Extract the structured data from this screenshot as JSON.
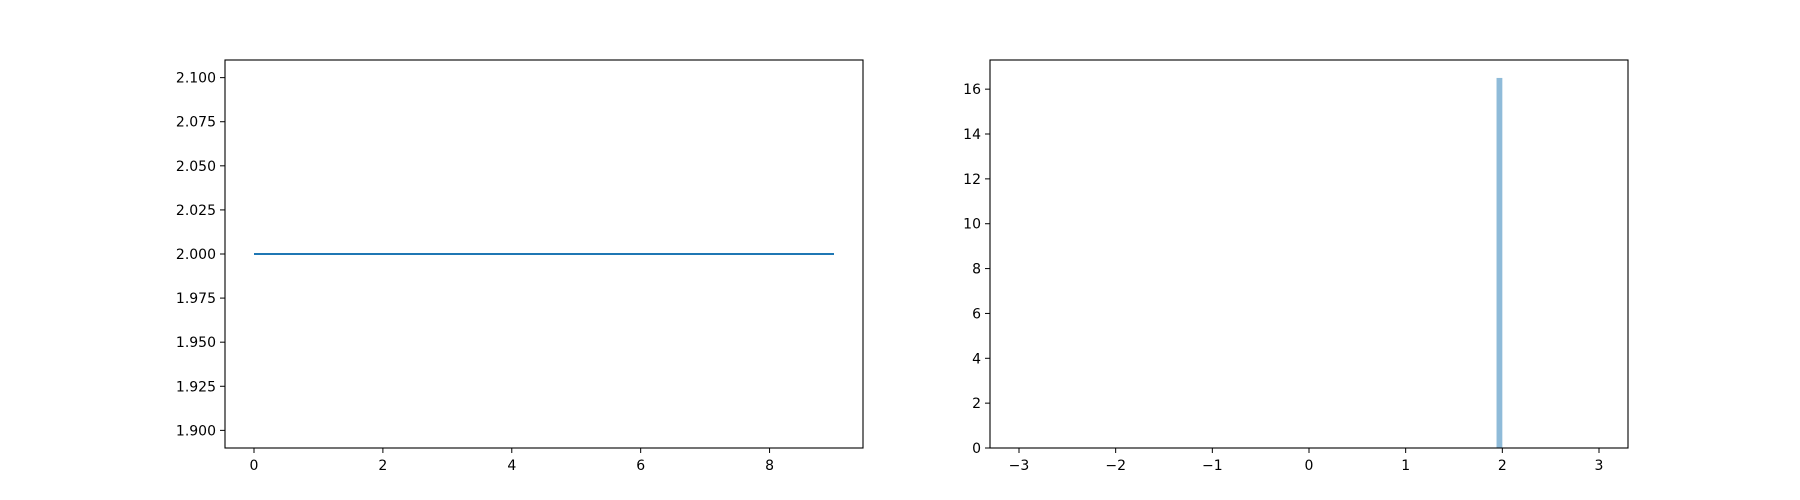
{
  "chart_data": [
    {
      "type": "line",
      "title": "",
      "xlabel": "",
      "ylabel": "",
      "xlim": [
        -0.45,
        9.45
      ],
      "ylim": [
        1.89,
        2.11
      ],
      "x_ticks": [
        0,
        2,
        4,
        6,
        8
      ],
      "x_tick_labels": [
        "0",
        "2",
        "4",
        "6",
        "8"
      ],
      "y_ticks": [
        1.9,
        1.925,
        1.95,
        1.975,
        2.0,
        2.025,
        2.05,
        2.075,
        2.1
      ],
      "y_tick_labels": [
        "1.900",
        "1.925",
        "1.950",
        "1.975",
        "2.000",
        "2.025",
        "2.050",
        "2.075",
        "2.100"
      ],
      "grid": false,
      "series": [
        {
          "x": [
            0,
            1,
            2,
            3,
            4,
            5,
            6,
            7,
            8,
            9
          ],
          "y": [
            2,
            2,
            2,
            2,
            2,
            2,
            2,
            2,
            2,
            2
          ],
          "color": "#1f77b4"
        }
      ]
    },
    {
      "type": "bar",
      "title": "",
      "xlabel": "",
      "ylabel": "",
      "xlim": [
        -3.3,
        3.3
      ],
      "ylim": [
        0,
        17.3
      ],
      "x_ticks": [
        -3,
        -2,
        -1,
        0,
        1,
        2,
        3
      ],
      "x_tick_labels": [
        "−3",
        "−2",
        "−1",
        "0",
        "1",
        "2",
        "3"
      ],
      "y_ticks": [
        0,
        2,
        4,
        6,
        8,
        10,
        12,
        14,
        16
      ],
      "y_tick_labels": [
        "0",
        "2",
        "4",
        "6",
        "8",
        "10",
        "12",
        "14",
        "16"
      ],
      "grid": false,
      "bars": [
        {
          "x_start": 1.94,
          "x_end": 2.0,
          "value": 16.5
        }
      ],
      "color": "#1f77b4",
      "opacity": 0.5
    }
  ]
}
